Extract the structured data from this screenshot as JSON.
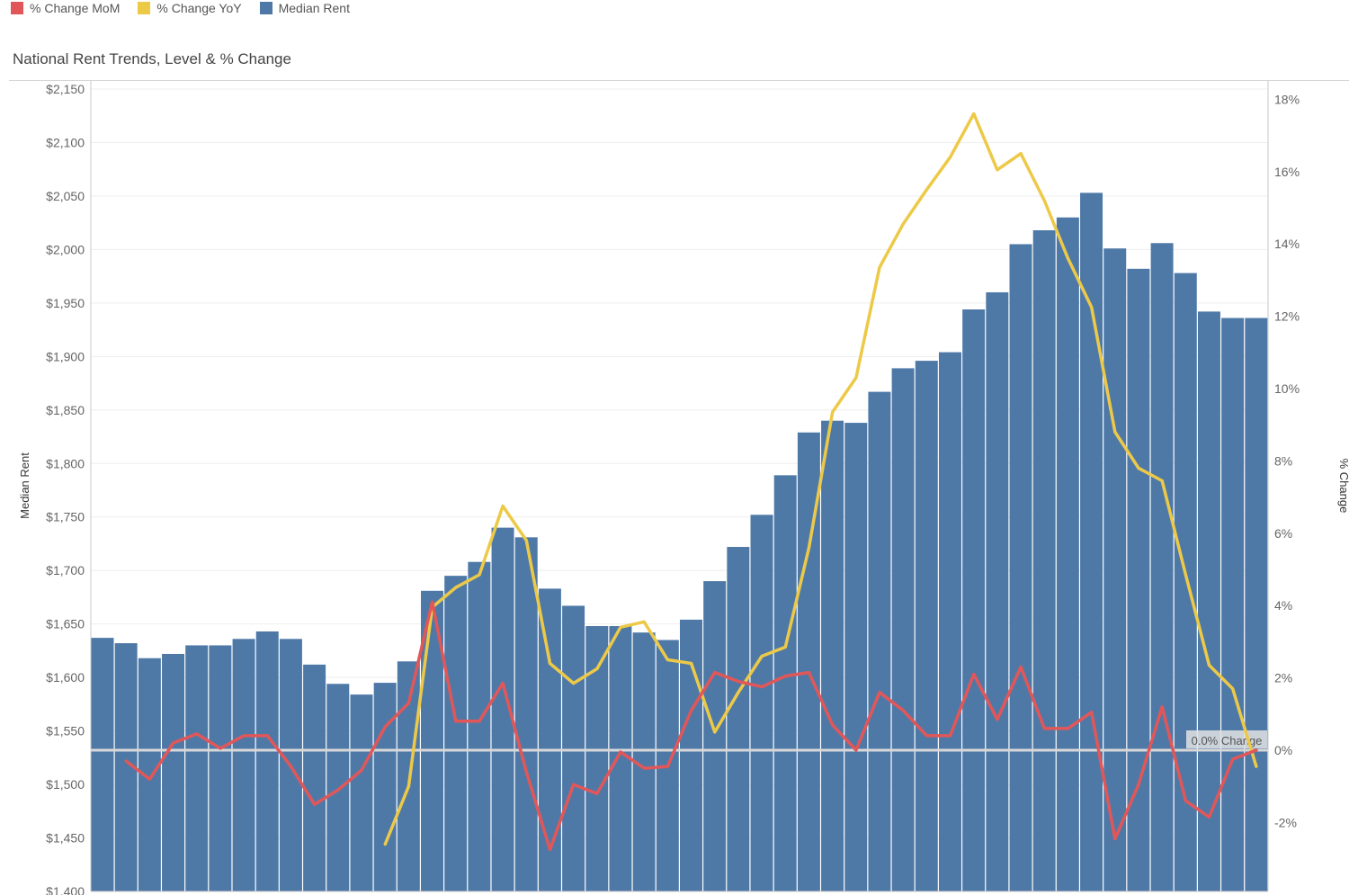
{
  "legend": [
    {
      "label": "% Change MoM",
      "color": "#e15759"
    },
    {
      "label": "% Change YoY",
      "color": "#edc948"
    },
    {
      "label": "Median Rent",
      "color": "#4e79a7"
    }
  ],
  "title": "National Rent Trends, Level & % Change",
  "chart_data": {
    "type": "bar",
    "title": "National Rent Trends, Level & % Change",
    "ylabel": "Median Rent",
    "y2label": "% Change",
    "ylim": [
      1400,
      2150
    ],
    "y2lim": [
      -4,
      18
    ],
    "yticks": [
      1400,
      1450,
      1500,
      1550,
      1600,
      1650,
      1700,
      1750,
      1800,
      1850,
      1900,
      1950,
      2000,
      2050,
      2100,
      2150
    ],
    "yticklabels": [
      "$1,400",
      "$1,450",
      "$1,500",
      "$1,550",
      "$1,600",
      "$1,650",
      "$1,700",
      "$1,750",
      "$1,800",
      "$1,850",
      "$1,900",
      "$1,950",
      "$2,000",
      "$2,050",
      "$2,100",
      "$2,150"
    ],
    "y2ticks": [
      -2,
      0,
      2,
      4,
      6,
      8,
      10,
      12,
      14,
      16,
      18
    ],
    "y2ticklabels": [
      "-2%",
      "0%",
      "2%",
      "4%",
      "6%",
      "8%",
      "10%",
      "12%",
      "14%",
      "16%",
      "18%"
    ],
    "reference_line": {
      "value": 0,
      "label": "0.0% Change"
    },
    "series": [
      {
        "name": "Median Rent",
        "type": "bar",
        "color": "#4e79a7",
        "values": [
          1637,
          1632,
          1618,
          1622,
          1630,
          1630,
          1636,
          1643,
          1636,
          1612,
          1594,
          1584,
          1595,
          1615,
          1681,
          1695,
          1708,
          1740,
          1731,
          1683,
          1667,
          1648,
          1648,
          1642,
          1635,
          1654,
          1690,
          1722,
          1752,
          1789,
          1829,
          1840,
          1838,
          1867,
          1889,
          1896,
          1904,
          1944,
          1960,
          2005,
          2018,
          2030,
          2053,
          2001,
          1982,
          2006,
          1978,
          1942,
          1936,
          1936
        ]
      },
      {
        "name": "% Change MoM",
        "type": "line",
        "color": "#e15759",
        "values": [
          null,
          -0.3,
          -0.8,
          0.2,
          0.45,
          0.05,
          0.4,
          0.4,
          -0.45,
          -1.5,
          -1.1,
          -0.55,
          0.65,
          1.3,
          4.1,
          0.8,
          0.8,
          1.85,
          -0.6,
          -2.75,
          -0.95,
          -1.2,
          -0.05,
          -0.5,
          -0.45,
          1.1,
          2.15,
          1.9,
          1.75,
          2.05,
          2.15,
          0.7,
          0.0,
          1.6,
          1.1,
          0.4,
          0.4,
          2.1,
          0.85,
          2.3,
          0.6,
          0.6,
          1.05,
          -2.45,
          -0.95,
          1.2,
          -1.4,
          -1.85,
          -0.25,
          0.0
        ]
      },
      {
        "name": "% Change YoY",
        "type": "line",
        "color": "#edc948",
        "values": [
          null,
          null,
          null,
          null,
          null,
          null,
          null,
          null,
          null,
          null,
          null,
          null,
          -2.6,
          -1.0,
          3.95,
          4.5,
          4.85,
          6.75,
          5.8,
          2.4,
          1.85,
          2.25,
          3.4,
          3.55,
          2.5,
          2.4,
          0.5,
          1.6,
          2.6,
          2.85,
          5.6,
          9.35,
          10.3,
          13.35,
          14.55,
          15.5,
          16.4,
          17.6,
          16.05,
          16.5,
          15.2,
          13.6,
          12.25,
          8.8,
          7.8,
          7.45,
          4.85,
          2.35,
          1.7,
          -0.45
        ]
      }
    ]
  }
}
